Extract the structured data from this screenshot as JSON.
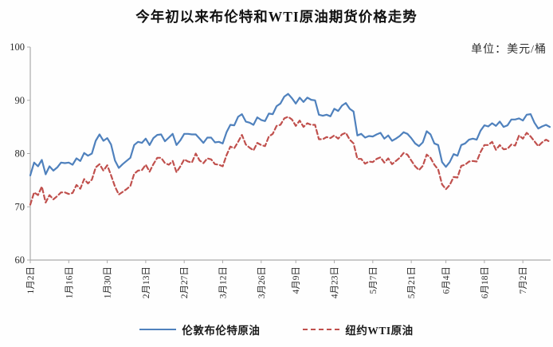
{
  "title": "今年初以来布伦特和WTI原油期货价格走势",
  "unit_label": "单位：美元/桶",
  "legend": [
    {
      "key": "brent",
      "label": "伦敦布伦特原油",
      "color": "#4f81bd",
      "style": "solid"
    },
    {
      "key": "wti",
      "label": "纽约WTI原油",
      "color": "#c0504d",
      "style": "dashed"
    }
  ],
  "chart_data": {
    "type": "line",
    "title": "今年初以来布伦特和WTI原油期货价格走势",
    "ylabel": "",
    "xlabel": "",
    "unit": "美元/桶",
    "ylim": [
      60,
      100
    ],
    "y_ticks": [
      100,
      90,
      80,
      70,
      60
    ],
    "grid": false,
    "legend_position": "bottom",
    "x_tick_labels": [
      "1月2日",
      "1月16日",
      "1月30日",
      "2月13日",
      "2月27日",
      "3月12日",
      "3月26日",
      "4月9日",
      "4月23日",
      "5月7日",
      "5月21日",
      "6月4日",
      "6月18日",
      "7月2日"
    ],
    "x": [
      "1月2日",
      "1月3日",
      "1月4日",
      "1月5日",
      "1月8日",
      "1月9日",
      "1月10日",
      "1月11日",
      "1月12日",
      "1月15日",
      "1月16日",
      "1月17日",
      "1月18日",
      "1月19日",
      "1月22日",
      "1月23日",
      "1月24日",
      "1月25日",
      "1月26日",
      "1月29日",
      "1月30日",
      "1月31日",
      "2月1日",
      "2月2日",
      "2月5日",
      "2月6日",
      "2月7日",
      "2月8日",
      "2月9日",
      "2月12日",
      "2月13日",
      "2月14日",
      "2月15日",
      "2月16日",
      "2月19日",
      "2月20日",
      "2月21日",
      "2月22日",
      "2月23日",
      "2月26日",
      "2月27日",
      "2月28日",
      "2月29日",
      "3月1日",
      "3月4日",
      "3月5日",
      "3月6日",
      "3月7日",
      "3月8日",
      "3月11日",
      "3月12日",
      "3月13日",
      "3月14日",
      "3月15日",
      "3月18日",
      "3月19日",
      "3月20日",
      "3月21日",
      "3月22日",
      "3月25日",
      "3月26日",
      "3月27日",
      "3月28日",
      "4月1日",
      "4月2日",
      "4月3日",
      "4月4日",
      "4月5日",
      "4月8日",
      "4月9日",
      "4月10日",
      "4月11日",
      "4月12日",
      "4月15日",
      "4月16日",
      "4月17日",
      "4月18日",
      "4月19日",
      "4月22日",
      "4月23日",
      "4月24日",
      "4月25日",
      "4月26日",
      "4月29日",
      "4月30日",
      "5月1日",
      "5月2日",
      "5月3日",
      "5月6日",
      "5月7日",
      "5月8日",
      "5月9日",
      "5月10日",
      "5月13日",
      "5月14日",
      "5月15日",
      "5月16日",
      "5月17日",
      "5月20日",
      "5月21日",
      "5月22日",
      "5月23日",
      "5月24日",
      "5月28日",
      "5月29日",
      "5月30日",
      "5月31日",
      "6月3日",
      "6月4日",
      "6月5日",
      "6月6日",
      "6月7日",
      "6月10日",
      "6月11日",
      "6月12日",
      "6月13日",
      "6月14日",
      "6月17日",
      "6月18日",
      "6月19日",
      "6月20日",
      "6月21日",
      "6月24日",
      "6月25日",
      "6月26日",
      "6月27日",
      "6月28日",
      "7月1日",
      "7月2日",
      "7月3日",
      "7月5日",
      "7月8日",
      "7月9日",
      "7月10日",
      "7月11日",
      "7月12日"
    ],
    "series": [
      {
        "key": "brent",
        "name": "伦敦布伦特原油",
        "color": "#4f81bd",
        "dash": false,
        "values": [
          75.9,
          78.3,
          77.6,
          78.8,
          76.1,
          77.6,
          76.8,
          77.4,
          78.3,
          78.2,
          78.3,
          77.9,
          79.1,
          78.6,
          80.1,
          79.6,
          80.0,
          82.4,
          83.6,
          82.4,
          82.9,
          81.7,
          78.7,
          77.3,
          78.0,
          78.6,
          79.2,
          81.6,
          82.2,
          82.0,
          82.8,
          81.6,
          82.9,
          83.5,
          83.6,
          82.3,
          83.0,
          83.7,
          81.6,
          82.5,
          83.7,
          83.7,
          83.6,
          83.6,
          82.8,
          82.0,
          83.0,
          83.0,
          82.1,
          82.2,
          81.9,
          84.0,
          85.4,
          85.3,
          86.9,
          87.4,
          86.0,
          85.8,
          85.4,
          86.8,
          86.3,
          86.1,
          87.5,
          87.4,
          88.9,
          89.4,
          90.7,
          91.2,
          90.4,
          89.4,
          90.5,
          89.7,
          90.5,
          90.1,
          90.0,
          87.3,
          87.1,
          87.3,
          87.0,
          88.4,
          88.0,
          89.0,
          89.5,
          88.4,
          87.9,
          83.4,
          83.7,
          83.0,
          83.3,
          83.2,
          83.6,
          83.9,
          82.8,
          83.4,
          82.4,
          82.8,
          83.3,
          84.0,
          83.7,
          82.9,
          81.9,
          81.4,
          82.1,
          84.2,
          83.6,
          81.9,
          81.6,
          78.4,
          77.5,
          78.4,
          79.9,
          79.6,
          81.6,
          81.9,
          82.6,
          82.8,
          82.6,
          84.3,
          85.3,
          85.1,
          85.7,
          85.2,
          86.0,
          85.0,
          85.3,
          86.4,
          86.4,
          86.6,
          86.2,
          87.3,
          87.4,
          85.8,
          84.7,
          85.1,
          85.4,
          85.0
        ]
      },
      {
        "key": "wti",
        "name": "纽约WTI原油",
        "color": "#c0504d",
        "dash": true,
        "values": [
          70.4,
          72.7,
          72.2,
          73.8,
          70.8,
          72.2,
          71.4,
          72.0,
          72.7,
          72.7,
          72.4,
          72.6,
          74.1,
          73.4,
          75.2,
          74.4,
          75.1,
          77.4,
          78.0,
          76.8,
          77.8,
          75.9,
          73.8,
          72.3,
          72.8,
          73.3,
          73.9,
          76.2,
          76.8,
          76.9,
          77.9,
          76.6,
          78.0,
          79.2,
          79.2,
          78.2,
          77.9,
          78.6,
          76.5,
          77.6,
          78.9,
          78.5,
          78.3,
          80.0,
          78.7,
          78.2,
          79.1,
          78.9,
          78.0,
          77.9,
          77.6,
          79.7,
          81.3,
          81.0,
          82.2,
          83.5,
          81.7,
          81.1,
          80.6,
          82.0,
          81.6,
          81.4,
          83.2,
          83.7,
          85.2,
          85.4,
          86.6,
          86.9,
          86.4,
          85.2,
          86.2,
          85.0,
          85.7,
          85.4,
          85.4,
          82.7,
          82.7,
          83.1,
          82.9,
          83.4,
          82.8,
          83.6,
          83.9,
          82.6,
          81.9,
          79.0,
          79.0,
          78.1,
          78.5,
          78.4,
          79.0,
          79.3,
          78.3,
          79.1,
          78.0,
          78.6,
          79.2,
          80.1,
          79.8,
          78.7,
          77.6,
          76.9,
          77.7,
          79.8,
          79.2,
          77.9,
          77.0,
          74.2,
          73.3,
          74.1,
          75.6,
          75.5,
          77.7,
          77.9,
          78.5,
          78.6,
          78.5,
          80.3,
          81.6,
          81.6,
          82.2,
          80.7,
          81.6,
          80.8,
          80.9,
          81.7,
          81.5,
          83.4,
          82.8,
          83.9,
          83.2,
          82.3,
          81.4,
          82.1,
          82.6,
          82.2
        ]
      }
    ]
  }
}
